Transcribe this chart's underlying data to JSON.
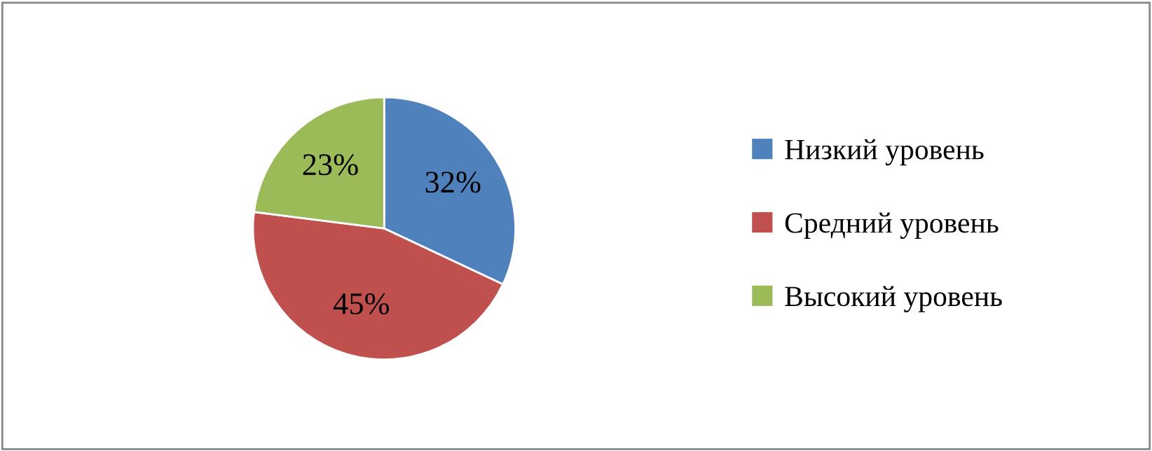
{
  "chart_data": {
    "type": "pie",
    "categories": [
      "Низкий уровень",
      "Средний уровень",
      "Высокий уровень"
    ],
    "values": [
      32,
      45,
      23
    ],
    "colors": [
      "#4f81bd",
      "#c0504d",
      "#9bbb59"
    ],
    "value_labels": [
      "32%",
      "45%",
      "23%"
    ],
    "legend": "right"
  }
}
